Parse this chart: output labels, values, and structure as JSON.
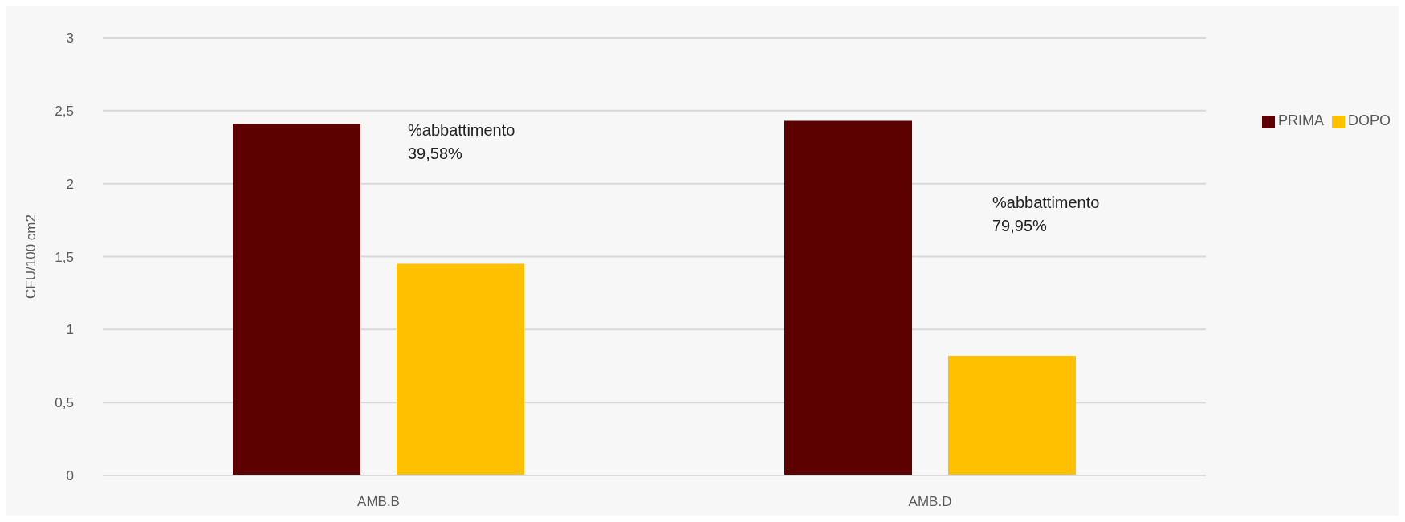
{
  "chart_data": {
    "type": "bar",
    "ylabel": "CFU/100 cm2",
    "categories": [
      "AMB.B",
      "AMB.D"
    ],
    "series": [
      {
        "name": "PRIMA",
        "color": "#5c0000",
        "values": [
          2.41,
          2.43
        ]
      },
      {
        "name": "DOPO",
        "color": "#ffc000",
        "values": [
          1.45,
          0.82
        ]
      }
    ],
    "ylim": [
      0,
      3
    ],
    "yticks": [
      {
        "value": 0,
        "label": "0"
      },
      {
        "value": 0.5,
        "label": "0,5"
      },
      {
        "value": 1,
        "label": "1"
      },
      {
        "value": 1.5,
        "label": "1,5"
      },
      {
        "value": 2,
        "label": "2"
      },
      {
        "value": 2.5,
        "label": "2,5"
      },
      {
        "value": 3,
        "label": "3"
      }
    ],
    "grid": "y",
    "legend": "right",
    "annotations": [
      "%abbattimento\n39,58%",
      "%abbattimento\n79,95%"
    ]
  }
}
